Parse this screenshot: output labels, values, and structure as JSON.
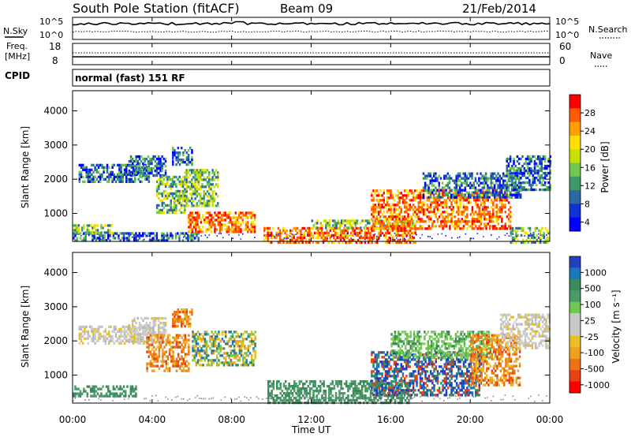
{
  "header": {
    "station": "South Pole Station (fitACF)",
    "beam": "Beam 09",
    "date": "21/Feb/2014"
  },
  "status_panels": {
    "nsky_label": "N.Sky",
    "nsky_ticks": [
      "10^5",
      "10^0"
    ],
    "nsearch_label": "N.Search",
    "nsearch_ticks": [
      "10^5",
      "10^0"
    ],
    "freq_label_1": "Freq.",
    "freq_label_2": "[MHz]",
    "freq_ticks": [
      "18",
      "8"
    ],
    "nave_label": "Nave",
    "nave_ticks": [
      "60",
      "0"
    ],
    "cpid_label": "CPID",
    "cpid_value": "normal (fast) 151 RF"
  },
  "chart_data": [
    {
      "type": "heatmap",
      "name": "power",
      "ylabel": "Slant Range [km]",
      "ylim": [
        180,
        4590
      ],
      "yticks": [
        1000,
        2000,
        3000,
        4000
      ],
      "xlim": [
        0,
        24
      ],
      "colorbar_label": "Power [dB]",
      "colorbar_ticks": [
        "28",
        "24",
        "20",
        "16",
        "12",
        "8",
        "4"
      ],
      "colors": [
        "#ff0000",
        "#ff5a00",
        "#ffa000",
        "#ffe000",
        "#c8e000",
        "#70c850",
        "#3c9a6a",
        "#2a6aa0",
        "#1030d8",
        "#0000ff"
      ],
      "echo_regions": [
        {
          "t0": 0.0,
          "t1": 6.3,
          "r0": 180,
          "r1": 450,
          "level": "low"
        },
        {
          "t0": 0.0,
          "t1": 2.0,
          "r0": 450,
          "r1": 680,
          "level": "mid"
        },
        {
          "t0": 0.3,
          "t1": 3.8,
          "r0": 1950,
          "r1": 2450,
          "level": "low"
        },
        {
          "t0": 2.8,
          "t1": 4.7,
          "r0": 2100,
          "r1": 2700,
          "level": "low"
        },
        {
          "t0": 5.0,
          "t1": 6.0,
          "r0": 2400,
          "r1": 2950,
          "level": "low"
        },
        {
          "t0": 4.2,
          "t1": 5.6,
          "r0": 1050,
          "r1": 2100,
          "level": "mid"
        },
        {
          "t0": 5.8,
          "t1": 9.2,
          "r0": 450,
          "r1": 1050,
          "level": "high"
        },
        {
          "t0": 5.6,
          "t1": 7.3,
          "r0": 1200,
          "r1": 2300,
          "level": "mid"
        },
        {
          "t0": 9.6,
          "t1": 17.2,
          "r0": 180,
          "r1": 600,
          "level": "high"
        },
        {
          "t0": 12.0,
          "t1": 17.2,
          "r0": 550,
          "r1": 820,
          "level": "mid"
        },
        {
          "t0": 15.0,
          "t1": 22.0,
          "r0": 550,
          "r1": 1700,
          "level": "high"
        },
        {
          "t0": 17.6,
          "t1": 22.5,
          "r0": 1500,
          "r1": 2200,
          "level": "low"
        },
        {
          "t0": 21.8,
          "t1": 24.0,
          "r0": 1700,
          "r1": 2700,
          "level": "low"
        },
        {
          "t0": 22.0,
          "t1": 24.0,
          "r0": 180,
          "r1": 600,
          "level": "mid"
        }
      ]
    },
    {
      "type": "heatmap",
      "name": "velocity",
      "ylabel": "Slant Range [km]",
      "ylim": [
        180,
        4590
      ],
      "yticks": [
        1000,
        2000,
        3000,
        4000
      ],
      "xlim": [
        0,
        24
      ],
      "colorbar_label": "Velocity [m s⁻¹]",
      "colorbar_ticks": [
        "1000",
        "500",
        "100",
        "25",
        "-25",
        "-100",
        "-500",
        "-1000"
      ],
      "colors": [
        "#2040c0",
        "#1878b8",
        "#3a8a5a",
        "#4a9a6a",
        "#70c850",
        "#c8c8c8",
        "#c8c8c8",
        "#e8c020",
        "#f0a020",
        "#f07018",
        "#e84010",
        "#ff0000"
      ],
      "echo_regions": [
        {
          "t0": 0.3,
          "t1": 3.8,
          "r0": 1950,
          "r1": 2450,
          "v": "gray"
        },
        {
          "t0": 2.8,
          "t1": 4.7,
          "r0": 2000,
          "r1": 2700,
          "v": "gray"
        },
        {
          "t0": 3.7,
          "t1": 5.8,
          "r0": 1100,
          "r1": 2200,
          "v": "orange"
        },
        {
          "t0": 5.0,
          "t1": 6.0,
          "r0": 2400,
          "r1": 2950,
          "v": "orange"
        },
        {
          "t0": 0.0,
          "t1": 3.2,
          "r0": 400,
          "r1": 700,
          "v": "green"
        },
        {
          "t0": 6.0,
          "t1": 9.2,
          "r0": 1300,
          "r1": 2300,
          "v": "mixed"
        },
        {
          "t0": 9.8,
          "t1": 17.0,
          "r0": 180,
          "r1": 850,
          "v": "green"
        },
        {
          "t0": 15.0,
          "t1": 20.5,
          "r0": 400,
          "r1": 1700,
          "v": "blue"
        },
        {
          "t0": 16.0,
          "t1": 21.0,
          "r0": 1500,
          "r1": 2300,
          "v": "lightgreen"
        },
        {
          "t0": 20.0,
          "t1": 22.5,
          "r0": 700,
          "r1": 2200,
          "v": "orange"
        },
        {
          "t0": 21.5,
          "t1": 24.0,
          "r0": 1800,
          "r1": 2800,
          "v": "gray"
        }
      ]
    }
  ],
  "xaxis": {
    "ticks": [
      "00:00",
      "04:00",
      "08:00",
      "12:00",
      "16:00",
      "20:00",
      "00:00"
    ],
    "label": "Time UT"
  }
}
